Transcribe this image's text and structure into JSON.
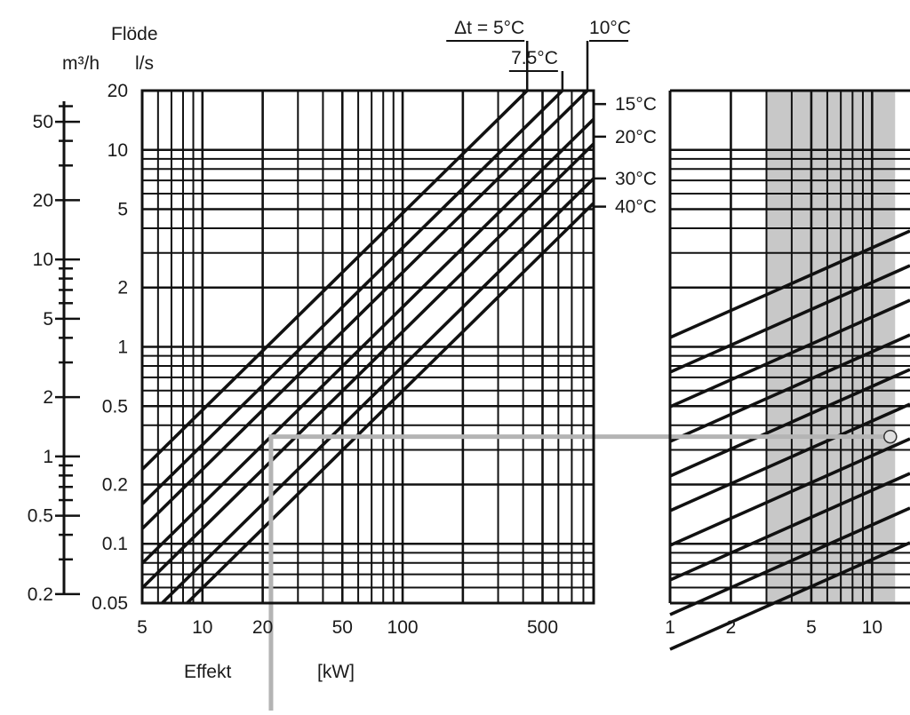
{
  "chart_data": {
    "type": "line",
    "title": "",
    "y_axis_left": {
      "title": "Flöde",
      "unit_outer": "m³/h",
      "unit_inner": "l/s",
      "m3h_ticks": [
        {
          "v": 50,
          "label": "50"
        },
        {
          "v": 20,
          "label": "20"
        },
        {
          "v": 10,
          "label": "10"
        },
        {
          "v": 5,
          "label": "5"
        },
        {
          "v": 2,
          "label": "2"
        },
        {
          "v": 1,
          "label": "1"
        },
        {
          "v": 0.5,
          "label": "0.5"
        },
        {
          "v": 0.2,
          "label": "0.2"
        }
      ],
      "ls_ticks": [
        {
          "v": 20,
          "label": "20"
        },
        {
          "v": 10,
          "label": "10"
        },
        {
          "v": 5,
          "label": "5"
        },
        {
          "v": 2,
          "label": "2"
        },
        {
          "v": 1,
          "label": "1"
        },
        {
          "v": 0.5,
          "label": "0.5"
        },
        {
          "v": 0.2,
          "label": "0.2"
        },
        {
          "v": 0.1,
          "label": "0.1"
        },
        {
          "v": 0.05,
          "label": "0.05"
        }
      ],
      "ylim_ls": [
        0.05,
        20
      ],
      "scale": "log"
    },
    "x_axis": {
      "label_name": "Effekt",
      "label_unit": "[kW]",
      "ticks": [
        {
          "v": 5,
          "label": "5"
        },
        {
          "v": 10,
          "label": "10"
        },
        {
          "v": 20,
          "label": "20"
        },
        {
          "v": 50,
          "label": "50"
        },
        {
          "v": 100,
          "label": "100"
        },
        {
          "v": 500,
          "label": "500"
        }
      ],
      "xlim": [
        5,
        900
      ],
      "scale": "log"
    },
    "right_panel": {
      "ticks": [
        {
          "v": 1,
          "label": "1"
        },
        {
          "v": 2,
          "label": "2"
        },
        {
          "v": 5,
          "label": "5"
        },
        {
          "v": 10,
          "label": "10"
        }
      ],
      "shaded_band": [
        3,
        13
      ]
    },
    "series": [
      {
        "name": "Δt = 5°C",
        "dt": 5,
        "label_pos": "top"
      },
      {
        "name": "7.5°C",
        "dt": 7.5,
        "label_pos": "top"
      },
      {
        "name": "10°C",
        "dt": 10,
        "label_pos": "top"
      },
      {
        "name": "15°C",
        "dt": 15,
        "label_pos": "right"
      },
      {
        "name": "20°C",
        "dt": 20,
        "label_pos": "right"
      },
      {
        "name": "30°C",
        "dt": 30,
        "label_pos": "right"
      },
      {
        "name": "40°C",
        "dt": 40,
        "label_pos": "right"
      }
    ],
    "example_reading": {
      "effekt_kw": 22,
      "flow_ls": 0.35
    },
    "grid": true
  }
}
